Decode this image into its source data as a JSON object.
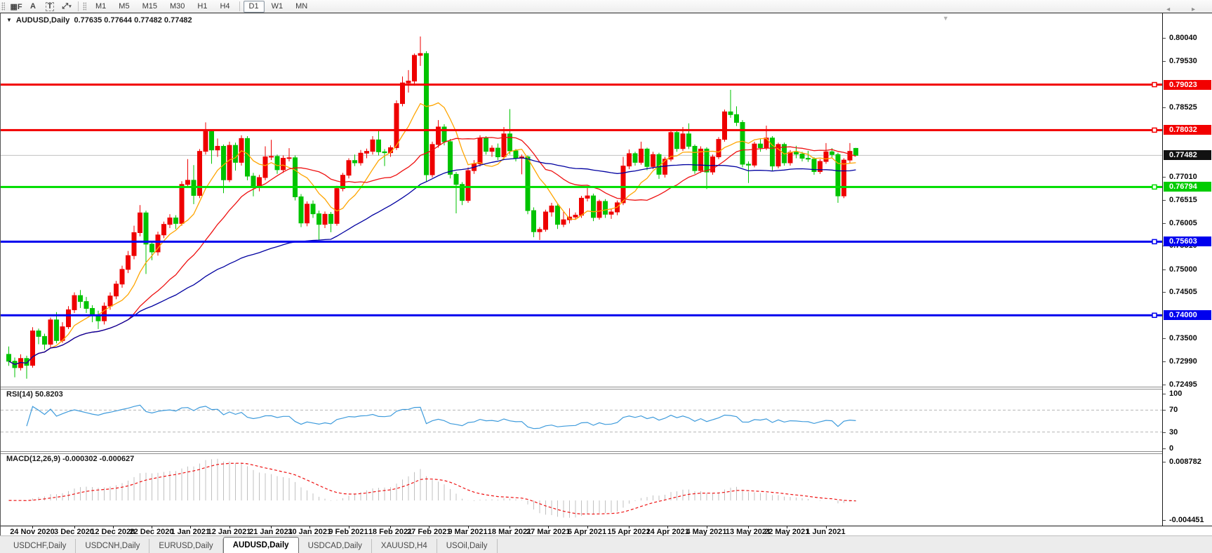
{
  "toolbar": {
    "tools": [
      {
        "name": "grid-f-tool",
        "glyph": "▦F"
      },
      {
        "name": "label-a-tool",
        "glyph": "A"
      },
      {
        "name": "textbox-t-tool",
        "glyph": "T"
      },
      {
        "name": "arrange-tool",
        "glyph": "⤢"
      }
    ],
    "dropdown_glyph": "▾",
    "timeframes": [
      "M1",
      "M5",
      "M15",
      "M30",
      "H1",
      "H4",
      "D1",
      "W1",
      "MN"
    ],
    "active_timeframe": "D1"
  },
  "chart": {
    "symbol_title": "AUDUSD,Daily",
    "ohlc_text": "0.77635 0.77644 0.77482 0.77482",
    "nav_caret": "▼"
  },
  "tabs": {
    "items": [
      "USDCHF,Daily",
      "USDCNH,Daily",
      "EURUSD,Daily",
      "AUDUSD,Daily",
      "USDCAD,Daily",
      "XAUUSD,H4",
      "USOil,Daily"
    ],
    "active": "AUDUSD,Daily",
    "scroll_arrows": "◂ ▸"
  },
  "chart_data": {
    "type": "candlestick",
    "symbol": "AUDUSD",
    "timeframe": "Daily",
    "last_ohlc": {
      "open": "0.77635",
      "high": "0.77644",
      "low": "0.77482",
      "close": "0.77482"
    },
    "bull_color": "#ee0000",
    "bear_color": "#00c300",
    "price_axis": {
      "top_price": 0.80575,
      "bottom_price": 0.72461,
      "ticks": [
        0.8004,
        0.7953,
        0.78525,
        0.7701,
        0.76515,
        0.76005,
        0.7551,
        0.75,
        0.74505,
        0.735,
        0.7299,
        0.72495
      ]
    },
    "current_price": 0.77482,
    "badges": [
      {
        "price": 0.79023,
        "label": "0.79023",
        "color": "#f20000"
      },
      {
        "price": 0.78032,
        "label": "0.78032",
        "color": "#f20000"
      },
      {
        "price": 0.77482,
        "label": "0.77482",
        "color": "#111111"
      },
      {
        "price": 0.76794,
        "label": "0.76794",
        "color": "#00cc00"
      },
      {
        "price": 0.75603,
        "label": "0.75603",
        "color": "#0000ee"
      },
      {
        "price": 0.74,
        "label": "0.74000",
        "color": "#0000ee"
      }
    ],
    "levels": [
      {
        "price": 0.79023,
        "color": "#f20000",
        "width": 3
      },
      {
        "price": 0.78032,
        "color": "#f20000",
        "width": 3
      },
      {
        "price": 0.76794,
        "color": "#00dd00",
        "width": 3
      },
      {
        "price": 0.75603,
        "color": "#0000ee",
        "width": 3
      },
      {
        "price": 0.74,
        "color": "#0000ee",
        "width": 3
      }
    ],
    "current_line_color": "#c0c0c0",
    "moving_averages": [
      {
        "period": 8,
        "color": "#ffa500"
      },
      {
        "period": 21,
        "color": "#ee1111"
      },
      {
        "period": 55,
        "color": "#0000a0"
      }
    ],
    "x_labels": [
      [
        "24 Nov 2020",
        4
      ],
      [
        "3 Dec 2020",
        11
      ],
      [
        "12 Dec 2020",
        17.5
      ],
      [
        "22 Dec 2020",
        24
      ],
      [
        "1 Jan 2021",
        30.5
      ],
      [
        "12 Jan 2021",
        37
      ],
      [
        "21 Jan 2021",
        44
      ],
      [
        "30 Jan 2021",
        50.5
      ],
      [
        "9 Feb 2021",
        57
      ],
      [
        "18 Feb 2021",
        64
      ],
      [
        "27 Feb 2021",
        70.5
      ],
      [
        "9 Mar 2021",
        77
      ],
      [
        "18 Mar 2021",
        84
      ],
      [
        "27 Mar 2021",
        90.5
      ],
      [
        "6 Apr 2021",
        97
      ],
      [
        "15 Apr 2021",
        104
      ],
      [
        "24 Apr 2021",
        110.5
      ],
      [
        "4 May 2021",
        117
      ],
      [
        "13 May 2021",
        124
      ],
      [
        "22 May 2021",
        130.5
      ],
      [
        "1 Jun 2021",
        137
      ]
    ],
    "candles": [
      [
        0.7315,
        0.7332,
        0.729,
        0.73
      ],
      [
        0.73,
        0.7308,
        0.7265,
        0.7286
      ],
      [
        0.7286,
        0.7315,
        0.728,
        0.7306
      ],
      [
        0.7306,
        0.7312,
        0.7262,
        0.7291
      ],
      [
        0.7291,
        0.7374,
        0.7286,
        0.7366
      ],
      [
        0.7366,
        0.7371,
        0.7337,
        0.7354
      ],
      [
        0.7354,
        0.736,
        0.7325,
        0.7337
      ],
      [
        0.7337,
        0.7395,
        0.733,
        0.739
      ],
      [
        0.739,
        0.7407,
        0.7339,
        0.7345
      ],
      [
        0.7345,
        0.7385,
        0.734,
        0.7375
      ],
      [
        0.7375,
        0.742,
        0.737,
        0.7412
      ],
      [
        0.7412,
        0.745,
        0.7405,
        0.7443
      ],
      [
        0.7443,
        0.7455,
        0.7416,
        0.743
      ],
      [
        0.743,
        0.744,
        0.7405,
        0.7415
      ],
      [
        0.7415,
        0.7422,
        0.7385,
        0.74
      ],
      [
        0.74,
        0.741,
        0.737,
        0.7388
      ],
      [
        0.7388,
        0.7428,
        0.738,
        0.742
      ],
      [
        0.742,
        0.745,
        0.7412,
        0.7442
      ],
      [
        0.7442,
        0.7475,
        0.7435,
        0.7468
      ],
      [
        0.7468,
        0.7508,
        0.746,
        0.75
      ],
      [
        0.75,
        0.754,
        0.7492,
        0.753
      ],
      [
        0.753,
        0.7595,
        0.7522,
        0.758
      ],
      [
        0.758,
        0.764,
        0.7572,
        0.7623
      ],
      [
        0.7623,
        0.7628,
        0.749,
        0.7555
      ],
      [
        0.7555,
        0.7562,
        0.752,
        0.7538
      ],
      [
        0.7538,
        0.7582,
        0.753,
        0.7575
      ],
      [
        0.7575,
        0.7604,
        0.7568,
        0.7598
      ],
      [
        0.7598,
        0.762,
        0.759,
        0.7612
      ],
      [
        0.7612,
        0.7618,
        0.7588,
        0.76
      ],
      [
        0.76,
        0.7692,
        0.7595,
        0.7685
      ],
      [
        0.7685,
        0.774,
        0.7678,
        0.7694
      ],
      [
        0.7694,
        0.7727,
        0.7642,
        0.7661
      ],
      [
        0.7661,
        0.7762,
        0.7655,
        0.7757
      ],
      [
        0.7757,
        0.782,
        0.775,
        0.78
      ],
      [
        0.78,
        0.7805,
        0.773,
        0.776
      ],
      [
        0.776,
        0.7785,
        0.7745,
        0.7768
      ],
      [
        0.7768,
        0.7772,
        0.7666,
        0.7695
      ],
      [
        0.7695,
        0.7778,
        0.769,
        0.777
      ],
      [
        0.777,
        0.7776,
        0.7715,
        0.7733
      ],
      [
        0.7733,
        0.7792,
        0.7726,
        0.7785
      ],
      [
        0.7785,
        0.779,
        0.7694,
        0.7703
      ],
      [
        0.7703,
        0.771,
        0.7659,
        0.7678
      ],
      [
        0.7678,
        0.7706,
        0.767,
        0.77
      ],
      [
        0.77,
        0.7768,
        0.7694,
        0.7745
      ],
      [
        0.7745,
        0.7782,
        0.7738,
        0.7746
      ],
      [
        0.7746,
        0.775,
        0.7708,
        0.7717
      ],
      [
        0.7717,
        0.7748,
        0.771,
        0.7742
      ],
      [
        0.7742,
        0.7764,
        0.7735,
        0.7743
      ],
      [
        0.7743,
        0.7748,
        0.765,
        0.7658
      ],
      [
        0.7658,
        0.7664,
        0.7592,
        0.7601
      ],
      [
        0.7601,
        0.7648,
        0.7594,
        0.7642
      ],
      [
        0.7642,
        0.765,
        0.7612,
        0.7621
      ],
      [
        0.7621,
        0.7628,
        0.7564,
        0.7598
      ],
      [
        0.7598,
        0.7626,
        0.759,
        0.762
      ],
      [
        0.762,
        0.7625,
        0.7581,
        0.76
      ],
      [
        0.76,
        0.7682,
        0.7595,
        0.7676
      ],
      [
        0.7676,
        0.771,
        0.767,
        0.7705
      ],
      [
        0.7705,
        0.7742,
        0.7698,
        0.7737
      ],
      [
        0.7737,
        0.775,
        0.7725,
        0.7732
      ],
      [
        0.7732,
        0.776,
        0.7726,
        0.7753
      ],
      [
        0.7753,
        0.7763,
        0.7742,
        0.7757
      ],
      [
        0.7757,
        0.779,
        0.775,
        0.7782
      ],
      [
        0.7782,
        0.7805,
        0.7748,
        0.7756
      ],
      [
        0.7756,
        0.7762,
        0.7725,
        0.7754
      ],
      [
        0.7754,
        0.777,
        0.7745,
        0.7765
      ],
      [
        0.7765,
        0.7868,
        0.776,
        0.7861
      ],
      [
        0.7861,
        0.792,
        0.7855,
        0.7906
      ],
      [
        0.7906,
        0.7934,
        0.7885,
        0.791
      ],
      [
        0.791,
        0.797,
        0.79,
        0.7966
      ],
      [
        0.7966,
        0.8007,
        0.7943,
        0.797
      ],
      [
        0.797,
        0.7975,
        0.7692,
        0.7706
      ],
      [
        0.7706,
        0.7778,
        0.77,
        0.7772
      ],
      [
        0.7772,
        0.7825,
        0.7765,
        0.781
      ],
      [
        0.781,
        0.7816,
        0.777,
        0.7778
      ],
      [
        0.7778,
        0.7784,
        0.7698,
        0.7707
      ],
      [
        0.7707,
        0.7712,
        0.7622,
        0.7685
      ],
      [
        0.7685,
        0.769,
        0.764,
        0.765
      ],
      [
        0.765,
        0.7722,
        0.7645,
        0.7715
      ],
      [
        0.7715,
        0.7738,
        0.7708,
        0.773
      ],
      [
        0.773,
        0.7792,
        0.7724,
        0.7786
      ],
      [
        0.7786,
        0.779,
        0.775,
        0.7757
      ],
      [
        0.7757,
        0.777,
        0.7745,
        0.7764
      ],
      [
        0.7764,
        0.7774,
        0.7738,
        0.7745
      ],
      [
        0.7745,
        0.781,
        0.774,
        0.7795
      ],
      [
        0.7795,
        0.7849,
        0.775,
        0.7758
      ],
      [
        0.7758,
        0.7762,
        0.7735,
        0.7742
      ],
      [
        0.7742,
        0.775,
        0.7707,
        0.7745
      ],
      [
        0.7745,
        0.7748,
        0.762,
        0.7628
      ],
      [
        0.7628,
        0.7635,
        0.757,
        0.7582
      ],
      [
        0.7582,
        0.7592,
        0.7564,
        0.7587
      ],
      [
        0.7587,
        0.763,
        0.7582,
        0.7625
      ],
      [
        0.7625,
        0.7645,
        0.7615,
        0.7638
      ],
      [
        0.7638,
        0.7644,
        0.7588,
        0.7598
      ],
      [
        0.7598,
        0.7625,
        0.7592,
        0.7608
      ],
      [
        0.7608,
        0.7633,
        0.76,
        0.7614
      ],
      [
        0.7614,
        0.7624,
        0.7608,
        0.7618
      ],
      [
        0.7618,
        0.766,
        0.7612,
        0.7655
      ],
      [
        0.7655,
        0.7677,
        0.7648,
        0.766
      ],
      [
        0.766,
        0.7665,
        0.7605,
        0.7613
      ],
      [
        0.7613,
        0.7652,
        0.7608,
        0.7648
      ],
      [
        0.7648,
        0.7653,
        0.7612,
        0.762
      ],
      [
        0.762,
        0.7632,
        0.761,
        0.7625
      ],
      [
        0.7625,
        0.765,
        0.7618,
        0.7645
      ],
      [
        0.7645,
        0.7745,
        0.764,
        0.7725
      ],
      [
        0.7725,
        0.7761,
        0.7718,
        0.7752
      ],
      [
        0.7752,
        0.7756,
        0.7726,
        0.7733
      ],
      [
        0.7733,
        0.7778,
        0.7728,
        0.7762
      ],
      [
        0.7762,
        0.7765,
        0.7716,
        0.7724
      ],
      [
        0.7724,
        0.7756,
        0.7718,
        0.775
      ],
      [
        0.775,
        0.7754,
        0.7697,
        0.7707
      ],
      [
        0.7707,
        0.7745,
        0.77,
        0.774
      ],
      [
        0.774,
        0.7802,
        0.7735,
        0.7798
      ],
      [
        0.7798,
        0.7802,
        0.7756,
        0.7763
      ],
      [
        0.7763,
        0.781,
        0.7758,
        0.7795
      ],
      [
        0.7795,
        0.7818,
        0.7762,
        0.7768
      ],
      [
        0.7768,
        0.7772,
        0.7708,
        0.7715
      ],
      [
        0.7715,
        0.7768,
        0.771,
        0.7762
      ],
      [
        0.7762,
        0.7766,
        0.7675,
        0.7712
      ],
      [
        0.7712,
        0.775,
        0.7706,
        0.7745
      ],
      [
        0.7745,
        0.7788,
        0.774,
        0.7783
      ],
      [
        0.7783,
        0.7848,
        0.7778,
        0.7843
      ],
      [
        0.7843,
        0.7891,
        0.783,
        0.7837
      ],
      [
        0.7837,
        0.7855,
        0.7812,
        0.782
      ],
      [
        0.782,
        0.7825,
        0.7722,
        0.7729
      ],
      [
        0.7729,
        0.7735,
        0.7688,
        0.7727
      ],
      [
        0.7727,
        0.7778,
        0.7722,
        0.7773
      ],
      [
        0.7773,
        0.7785,
        0.7756,
        0.7765
      ],
      [
        0.7765,
        0.7813,
        0.776,
        0.7786
      ],
      [
        0.7786,
        0.779,
        0.7714,
        0.7725
      ],
      [
        0.7725,
        0.7776,
        0.772,
        0.7772
      ],
      [
        0.7772,
        0.7776,
        0.7726,
        0.7732
      ],
      [
        0.7732,
        0.776,
        0.7726,
        0.7755
      ],
      [
        0.7755,
        0.7769,
        0.7742,
        0.7751
      ],
      [
        0.7751,
        0.7756,
        0.7735,
        0.7742
      ],
      [
        0.7742,
        0.7758,
        0.7734,
        0.774
      ],
      [
        0.774,
        0.7744,
        0.7706,
        0.7713
      ],
      [
        0.7713,
        0.774,
        0.7708,
        0.7735
      ],
      [
        0.7735,
        0.7775,
        0.773,
        0.7756
      ],
      [
        0.7756,
        0.7764,
        0.7742,
        0.775
      ],
      [
        0.775,
        0.7754,
        0.7645,
        0.766
      ],
      [
        0.766,
        0.7742,
        0.7655,
        0.7738
      ],
      [
        0.7738,
        0.7775,
        0.7732,
        0.7757
      ],
      [
        0.77635,
        0.77644,
        0.77482,
        0.77482
      ]
    ],
    "rsi": {
      "label": "RSI(14) 50.8203",
      "period": 14,
      "value": "50.8203",
      "color": "#3e9bdc",
      "scale_ticks": [
        100,
        70,
        30,
        0
      ],
      "dashed_levels": [
        70,
        30
      ]
    },
    "macd": {
      "label": "MACD(12,26,9) -0.000302 -0.000627",
      "fast": 12,
      "slow": 26,
      "signal": 9,
      "values": [
        "-0.000302",
        "-0.000627"
      ],
      "histogram_color": "#c0c0c0",
      "signal_color": "#ee1111",
      "scale_max": 0.008782,
      "scale_min": -0.004451
    }
  }
}
